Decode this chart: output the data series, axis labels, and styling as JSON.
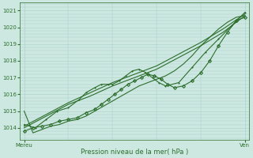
{
  "xlabel": "Pression niveau de la mer( hPa )",
  "xtick_labels": [
    "Mereu",
    "Ven"
  ],
  "xtick_positions": [
    0.0,
    1.0
  ],
  "ylim": [
    1013.3,
    1021.5
  ],
  "yticks": [
    1014,
    1015,
    1016,
    1017,
    1018,
    1019,
    1020,
    1021
  ],
  "bg_color": "#cce8e0",
  "grid_color": "#aacfc8",
  "line_color": "#2d6e2d",
  "marker_color": "#2d6e2d",
  "series": [
    {
      "x": [
        0.0,
        0.1,
        0.2,
        0.3,
        0.4,
        0.5,
        0.6,
        0.7,
        0.8,
        0.9,
        1.0
      ],
      "y": [
        1014.0,
        1014.7,
        1015.4,
        1015.9,
        1016.5,
        1017.0,
        1017.5,
        1018.2,
        1018.9,
        1019.7,
        1020.7
      ],
      "marker": "None",
      "lw": 0.8
    },
    {
      "x": [
        0.0,
        0.1,
        0.2,
        0.3,
        0.4,
        0.5,
        0.6,
        0.7,
        0.8,
        0.9,
        1.0
      ],
      "y": [
        1014.1,
        1014.8,
        1015.5,
        1016.1,
        1016.7,
        1017.2,
        1017.7,
        1018.4,
        1019.1,
        1019.9,
        1020.8
      ],
      "marker": "None",
      "lw": 0.8
    },
    {
      "x": [
        0.0,
        0.05,
        0.1,
        0.15,
        0.2,
        0.25,
        0.28,
        0.32,
        0.35,
        0.38,
        0.4,
        0.43,
        0.46,
        0.49,
        0.52,
        0.55,
        0.58,
        0.61,
        0.64,
        0.7,
        0.76,
        0.82,
        0.88,
        0.94,
        1.0
      ],
      "y": [
        1014.2,
        1014.0,
        1014.5,
        1015.0,
        1015.2,
        1015.7,
        1016.1,
        1016.4,
        1016.6,
        1016.6,
        1016.6,
        1016.8,
        1017.1,
        1017.4,
        1017.5,
        1017.3,
        1017.0,
        1016.7,
        1016.5,
        1016.7,
        1017.6,
        1018.5,
        1019.3,
        1020.1,
        1020.9
      ],
      "marker": "+",
      "lw": 0.8
    },
    {
      "x": [
        0.0,
        0.04,
        0.08,
        0.12,
        0.16,
        0.2,
        0.24,
        0.28,
        0.32,
        0.35,
        0.38,
        0.41,
        0.44,
        0.47,
        0.5,
        0.53,
        0.56,
        0.59,
        0.62,
        0.65,
        0.68,
        0.72,
        0.76,
        0.8,
        0.84,
        0.88,
        0.92,
        0.96,
        1.0
      ],
      "y": [
        1013.8,
        1014.0,
        1014.1,
        1014.2,
        1014.4,
        1014.5,
        1014.6,
        1014.9,
        1015.1,
        1015.4,
        1015.7,
        1016.0,
        1016.3,
        1016.6,
        1016.8,
        1017.0,
        1017.2,
        1017.1,
        1016.9,
        1016.6,
        1016.4,
        1016.5,
        1016.8,
        1017.3,
        1018.0,
        1018.9,
        1019.7,
        1020.4,
        1020.6
      ],
      "marker": "D",
      "lw": 0.8
    },
    {
      "x": [
        0.0,
        0.04,
        0.08,
        0.12,
        0.16,
        0.2,
        0.24,
        0.28,
        0.32,
        0.36,
        0.4,
        0.44,
        0.48,
        0.52,
        0.56,
        0.6,
        0.64,
        0.68,
        0.72,
        0.76,
        0.8,
        0.84,
        0.88,
        0.92,
        0.96,
        1.0
      ],
      "y": [
        1015.0,
        1013.7,
        1013.9,
        1014.1,
        1014.2,
        1014.4,
        1014.5,
        1014.7,
        1015.0,
        1015.3,
        1015.6,
        1015.9,
        1016.2,
        1016.5,
        1016.7,
        1016.9,
        1017.1,
        1017.4,
        1017.8,
        1018.3,
        1018.9,
        1019.4,
        1019.9,
        1020.3,
        1020.6,
        1020.7
      ],
      "marker": "None",
      "lw": 0.8
    }
  ]
}
